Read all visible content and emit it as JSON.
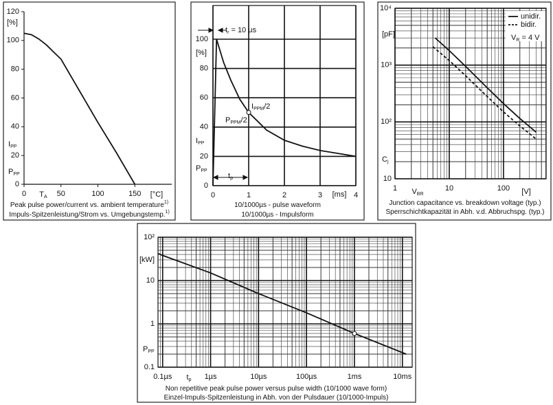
{
  "chart_data": [
    {
      "type": "line",
      "xscale": "linear",
      "yscale": "linear",
      "xlim": [
        0,
        200
      ],
      "ylim": [
        0,
        120
      ],
      "xticks": [
        0,
        50,
        100,
        150
      ],
      "yticks": [
        0,
        20,
        40,
        60,
        80,
        100,
        120
      ],
      "grid": false,
      "series": [
        {
          "color": "#111111",
          "style": "solid",
          "x": [
            0,
            10,
            20,
            30,
            40,
            50,
            75,
            100,
            125,
            150
          ],
          "values": [
            105,
            104,
            101,
            97,
            92,
            87,
            65,
            43,
            22,
            0
          ]
        }
      ],
      "annotations": [
        {
          "parts": [
            "T",
            "A"
          ]
        },
        {
          "parts": [
            "[°C]"
          ]
        },
        {
          "parts": [
            "[%]"
          ]
        },
        {
          "parts": [
            "I",
            "PP"
          ]
        },
        {
          "parts": [
            "P",
            "PP"
          ]
        }
      ],
      "captions": [
        [
          "Peak pulse power/current vs. ambient temperature",
          "1)"
        ],
        [
          "Impuls-Spitzenleistung/Strom vs. Umgebungstemp.",
          "1)"
        ]
      ]
    },
    {
      "type": "line",
      "xscale": "linear",
      "yscale": "linear",
      "xlim": [
        0,
        4
      ],
      "ylim": [
        0,
        123
      ],
      "xticks": [
        0,
        1,
        2,
        3,
        4
      ],
      "yticks": [
        0,
        20,
        40,
        60,
        80,
        100
      ],
      "grid": true,
      "series": [
        {
          "color": "#111111",
          "style": "solid",
          "x": [
            0,
            0.1,
            0.2,
            0.3,
            0.5,
            0.75,
            1,
            1.5,
            2,
            2.5,
            3,
            3.5,
            4
          ],
          "values": [
            0,
            100,
            92,
            84,
            72,
            59,
            50,
            38,
            31,
            27,
            24,
            22,
            20
          ],
          "marked_points": [
            6
          ]
        }
      ],
      "annotations": [
        {
          "parts": [
            "t",
            "r",
            " = 10 µs"
          ]
        },
        {
          "parts": [
            "[%]"
          ]
        },
        {
          "parts": [
            "I",
            "PP"
          ]
        },
        {
          "parts": [
            "P",
            "PP"
          ]
        },
        {
          "parts": [
            "I",
            "PPM",
            "/2"
          ]
        },
        {
          "parts": [
            "P",
            "PPM",
            "/2"
          ]
        },
        {
          "parts": [
            "t",
            "p"
          ]
        },
        {
          "parts": [
            "[ms]"
          ]
        }
      ],
      "captions": [
        [
          "10/1000µs - pulse waveform"
        ],
        [
          "10/1000µs - Impulsform"
        ]
      ]
    },
    {
      "type": "line",
      "xscale": "log",
      "yscale": "log",
      "xlim": [
        1,
        610
      ],
      "ylim": [
        10,
        10000
      ],
      "xticks": [
        1,
        10,
        100
      ],
      "yticks": [
        {
          "value": 10,
          "label": "10"
        },
        {
          "value": 100,
          "label": "10²"
        },
        {
          "value": 1000,
          "label": "10³"
        },
        {
          "value": 10000,
          "label": "10⁴"
        }
      ],
      "grid": true,
      "legend": "top-right",
      "series": [
        {
          "name": "unidir.",
          "color": "#111111",
          "style": "solid",
          "x": [
            5.5,
            10,
            20,
            50,
            100,
            200,
            400
          ],
          "values": [
            3000,
            1800,
            950,
            400,
            210,
            115,
            66
          ]
        },
        {
          "name": "bidir.",
          "color": "#111111",
          "style": "dashed",
          "x": [
            5,
            10,
            20,
            50,
            100,
            200,
            400
          ],
          "values": [
            2100,
            1200,
            650,
            280,
            150,
            85,
            50
          ]
        }
      ],
      "annotations": [
        {
          "parts": [
            "[pF]"
          ]
        },
        {
          "parts": [
            "C",
            "j"
          ]
        },
        {
          "parts": [
            "V",
            "BR"
          ]
        },
        {
          "parts": [
            "[V]"
          ]
        },
        {
          "parts": [
            "V",
            "R",
            " = 4 V"
          ]
        }
      ],
      "captions": [
        [
          "Junction capacitance vs. breakdown voltage (typ.)"
        ],
        [
          "Sperrschichtkapazität in Abh. v.d. Abbruchspg. (typ.)"
        ]
      ]
    },
    {
      "type": "line",
      "xscale": "log",
      "yscale": "log",
      "xlim": [
        0.08,
        16000
      ],
      "ylim": [
        0.1,
        100
      ],
      "xticks": [
        {
          "value": 0.1,
          "label": "0.1µs"
        },
        {
          "value": 1,
          "label": "1µs"
        },
        {
          "value": 10,
          "label": "10µs"
        },
        {
          "value": 100,
          "label": "100µs"
        },
        {
          "value": 1000,
          "label": "1ms"
        },
        {
          "value": 10000,
          "label": "10ms"
        }
      ],
      "yticks": [
        0.1,
        1,
        10,
        {
          "value": 100,
          "label": "10²"
        }
      ],
      "grid": true,
      "series": [
        {
          "color": "#111111",
          "style": "solid",
          "x": [
            0.08,
            0.1,
            1,
            10,
            100,
            1000,
            12000
          ],
          "values": [
            42,
            38,
            15,
            5,
            1.8,
            0.6,
            0.2
          ],
          "marked_points": [
            5
          ]
        }
      ],
      "annotations": [
        {
          "parts": [
            "[kW]"
          ]
        },
        {
          "parts": [
            "P",
            "PP"
          ]
        },
        {
          "parts": [
            "t",
            "p"
          ]
        }
      ],
      "captions": [
        [
          "Non repetitive peak pulse power  versus pulse width (10/1000 wave form)"
        ],
        [
          "Einzel-Impuls-Spitzenleistung in Abh. von der Pulsdauer (10/1000-Impuls)"
        ]
      ]
    }
  ]
}
